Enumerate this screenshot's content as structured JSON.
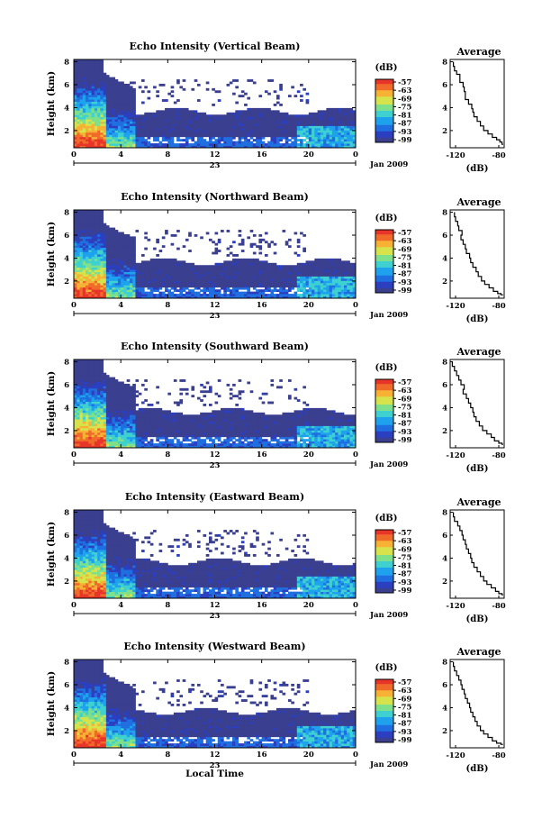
{
  "chart_data": [
    {
      "type": "heatmap",
      "title": "Echo Intensity (Vertical Beam)",
      "ylabel": "Height (km)",
      "x_ticks": [
        "0",
        "4",
        "8",
        "12",
        "16",
        "20",
        "0"
      ],
      "date_tick": "23",
      "date_label": "Jan 2009",
      "xlim": [
        0,
        24
      ],
      "ylim": [
        0.5,
        8.2
      ],
      "y_ticks": [
        "2",
        "4",
        "6",
        "8"
      ],
      "colorbar": {
        "unit": "(dB)",
        "ticks": [
          "-57",
          "-63",
          "-69",
          "-75",
          "-81",
          "-87",
          "-93",
          "-99"
        ],
        "range": [
          -99,
          -57
        ]
      },
      "profile": {
        "title": "Average",
        "xlabel": "(dB)",
        "x_ticks": [
          "-120",
          "-80"
        ],
        "xlim": [
          -125,
          -75
        ],
        "y_ticks": [
          "2",
          "4",
          "6",
          "8"
        ],
        "x": [
          -122,
          -121,
          -119,
          -116,
          -116,
          -113,
          -112,
          -111,
          -111,
          -108,
          -105,
          -104,
          -103,
          -100,
          -97,
          -94,
          -90,
          -86,
          -82,
          -79,
          -77,
          -76
        ],
        "y": [
          8.0,
          7.6,
          7.2,
          6.9,
          6.5,
          6.2,
          5.8,
          5.4,
          5.0,
          4.7,
          4.3,
          3.9,
          3.6,
          3.2,
          2.8,
          2.4,
          2.0,
          1.7,
          1.4,
          1.2,
          1.0,
          0.8
        ]
      }
    },
    {
      "type": "heatmap",
      "title": "Echo Intensity (Northward Beam)",
      "ylabel": "Height (km)",
      "x_ticks": [
        "0",
        "4",
        "8",
        "12",
        "16",
        "20",
        "0"
      ],
      "date_tick": "23",
      "date_label": "Jan 2009",
      "xlim": [
        0,
        24
      ],
      "ylim": [
        0.5,
        8.2
      ],
      "y_ticks": [
        "2",
        "4",
        "6",
        "8"
      ],
      "colorbar": {
        "unit": "(dB)",
        "ticks": [
          "-57",
          "-63",
          "-69",
          "-75",
          "-81",
          "-87",
          "-93",
          "-99"
        ],
        "range": [
          -99,
          -57
        ]
      },
      "profile": {
        "title": "Average",
        "xlabel": "(dB)",
        "x_ticks": [
          "-120",
          "-80"
        ],
        "xlim": [
          -125,
          -75
        ],
        "y_ticks": [
          "2",
          "4",
          "6",
          "8"
        ],
        "x": [
          -121,
          -120,
          -118,
          -117,
          -114,
          -115,
          -113,
          -111,
          -110,
          -107,
          -106,
          -104,
          -101,
          -99,
          -96,
          -93,
          -89,
          -85,
          -81,
          -78,
          -76
        ],
        "y": [
          8.0,
          7.6,
          7.2,
          6.8,
          6.4,
          6.0,
          5.6,
          5.2,
          4.8,
          4.4,
          4.0,
          3.6,
          3.2,
          2.8,
          2.4,
          2.0,
          1.7,
          1.4,
          1.1,
          0.9,
          0.8
        ]
      }
    },
    {
      "type": "heatmap",
      "title": "Echo Intensity (Southward Beam)",
      "ylabel": "Height (km)",
      "x_ticks": [
        "0",
        "4",
        "8",
        "12",
        "16",
        "20",
        "0"
      ],
      "date_tick": "23",
      "date_label": "Jan 2009",
      "xlim": [
        0,
        24
      ],
      "ylim": [
        0.5,
        8.2
      ],
      "y_ticks": [
        "2",
        "4",
        "6",
        "8"
      ],
      "colorbar": {
        "unit": "(dB)",
        "ticks": [
          "-57",
          "-63",
          "-69",
          "-75",
          "-81",
          "-87",
          "-93",
          "-99"
        ],
        "range": [
          -99,
          -57
        ]
      },
      "profile": {
        "title": "Average",
        "xlabel": "(dB)",
        "x_ticks": [
          "-120",
          "-80"
        ],
        "xlim": [
          -125,
          -75
        ],
        "y_ticks": [
          "2",
          "4",
          "6",
          "8"
        ],
        "x": [
          -123,
          -121,
          -119,
          -117,
          -115,
          -112,
          -113,
          -110,
          -108,
          -106,
          -104,
          -103,
          -101,
          -98,
          -95,
          -91,
          -87,
          -84,
          -80,
          -77,
          -76
        ],
        "y": [
          8.0,
          7.6,
          7.2,
          6.8,
          6.4,
          6.0,
          5.6,
          5.2,
          4.8,
          4.4,
          4.0,
          3.6,
          3.2,
          2.8,
          2.4,
          2.0,
          1.7,
          1.4,
          1.1,
          0.9,
          0.8
        ]
      }
    },
    {
      "type": "heatmap",
      "title": "Echo Intensity (Eastward Beam)",
      "ylabel": "Height (km)",
      "x_ticks": [
        "0",
        "4",
        "8",
        "12",
        "16",
        "20",
        "0"
      ],
      "date_tick": "23",
      "date_label": "Jan 2009",
      "xlim": [
        0,
        24
      ],
      "ylim": [
        0.5,
        8.2
      ],
      "y_ticks": [
        "2",
        "4",
        "6",
        "8"
      ],
      "colorbar": {
        "unit": "(dB)",
        "ticks": [
          "-57",
          "-63",
          "-69",
          "-75",
          "-81",
          "-87",
          "-93",
          "-99"
        ],
        "range": [
          -99,
          -57
        ]
      },
      "profile": {
        "title": "Average",
        "xlabel": "(dB)",
        "x_ticks": [
          "-120",
          "-80"
        ],
        "xlim": [
          -125,
          -75
        ],
        "y_ticks": [
          "2",
          "4",
          "6",
          "8"
        ],
        "x": [
          -122,
          -121,
          -118,
          -116,
          -114,
          -113,
          -111,
          -110,
          -108,
          -106,
          -105,
          -103,
          -100,
          -97,
          -94,
          -91,
          -87,
          -83,
          -80,
          -77,
          -76
        ],
        "y": [
          8.0,
          7.6,
          7.2,
          6.8,
          6.4,
          6.0,
          5.6,
          5.2,
          4.8,
          4.4,
          4.0,
          3.6,
          3.2,
          2.8,
          2.4,
          2.0,
          1.7,
          1.4,
          1.1,
          0.9,
          0.8
        ]
      }
    },
    {
      "type": "heatmap",
      "title": "Echo Intensity (Westward Beam)",
      "ylabel": "Height (km)",
      "x_ticks": [
        "0",
        "4",
        "8",
        "12",
        "16",
        "20",
        "0"
      ],
      "date_tick": "23",
      "date_label": "Jan 2009",
      "xlabel": "Local Time",
      "xlim": [
        0,
        24
      ],
      "ylim": [
        0.5,
        8.2
      ],
      "y_ticks": [
        "2",
        "4",
        "6",
        "8"
      ],
      "colorbar": {
        "unit": "(dB)",
        "ticks": [
          "-57",
          "-63",
          "-69",
          "-75",
          "-81",
          "-87",
          "-93",
          "-99"
        ],
        "range": [
          -99,
          -57
        ]
      },
      "profile": {
        "title": "Average",
        "xlabel": "(dB)",
        "x_ticks": [
          "-120",
          "-80"
        ],
        "xlim": [
          -125,
          -75
        ],
        "y_ticks": [
          "2",
          "4",
          "6",
          "8"
        ],
        "x": [
          -122,
          -121,
          -119,
          -117,
          -115,
          -114,
          -112,
          -111,
          -109,
          -107,
          -106,
          -104,
          -102,
          -100,
          -97,
          -94,
          -90,
          -86,
          -82,
          -78,
          -76
        ],
        "y": [
          8.0,
          7.6,
          7.2,
          6.8,
          6.4,
          6.0,
          5.6,
          5.2,
          4.8,
          4.4,
          4.0,
          3.6,
          3.2,
          2.8,
          2.4,
          2.0,
          1.7,
          1.4,
          1.1,
          0.9,
          0.8
        ]
      }
    }
  ],
  "colormap": [
    "#3a3f8f",
    "#2b3fc0",
    "#1f6fe0",
    "#1ea2ee",
    "#3fd0d0",
    "#7ee08a",
    "#d6e34a",
    "#f7b236",
    "#f06b2a",
    "#e8352a"
  ]
}
